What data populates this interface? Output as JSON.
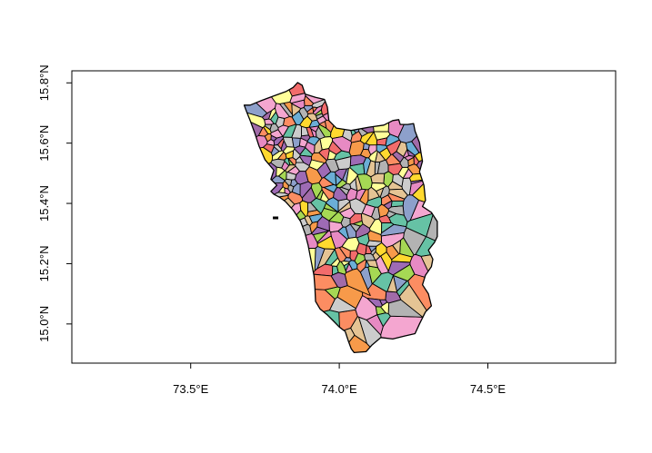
{
  "map": {
    "x_axis": {
      "range": [
        73.1,
        74.93
      ],
      "ticks": [
        {
          "value": 73.5,
          "label": "73.5°E"
        },
        {
          "value": 74.0,
          "label": "74.0°E"
        },
        {
          "value": 74.5,
          "label": "74.5°E"
        }
      ]
    },
    "y_axis": {
      "range": [
        14.87,
        15.84
      ],
      "ticks": [
        {
          "value": 15.0,
          "label": "15.0°N"
        },
        {
          "value": 15.2,
          "label": "15.2°N"
        },
        {
          "value": 15.4,
          "label": "15.4°N"
        },
        {
          "value": 15.6,
          "label": "15.6°N"
        },
        {
          "value": 15.8,
          "label": "15.8°N"
        }
      ]
    },
    "palette": [
      "#66c2a5",
      "#fc8d62",
      "#8da0cb",
      "#e78ac3",
      "#a6d854",
      "#ffd92f",
      "#e5c494",
      "#b3b3b3",
      "#f4a6d0",
      "#9e6bb5",
      "#f26c6c",
      "#ffff99",
      "#6baed6",
      "#cccccc",
      "#f79a4a",
      "#a16ba8"
    ],
    "border_color": "#000000"
  }
}
